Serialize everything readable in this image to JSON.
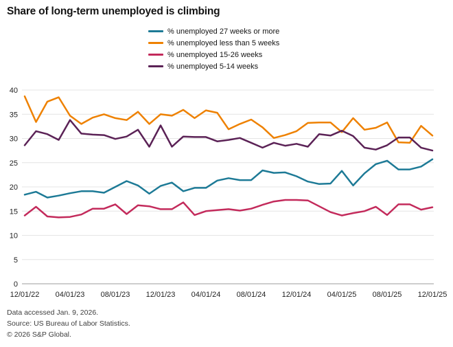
{
  "title": "Share of long-term unemployed is climbing",
  "footer": {
    "line1": "Data accessed Jan. 9, 2026.",
    "line2": "Source: US Bureau of Labor Statistics.",
    "line3": "© 2026 S&P Global."
  },
  "chart_data": {
    "type": "line",
    "x_start": "2022-12-01",
    "x_freq": "monthly",
    "n_points": 37,
    "x_tick_labels": [
      "12/01/22",
      "04/01/23",
      "08/01/23",
      "12/01/23",
      "04/01/24",
      "08/01/24",
      "12/01/24",
      "04/01/25",
      "08/01/25",
      "12/01/25"
    ],
    "x_tick_month_index": [
      0,
      4,
      8,
      12,
      16,
      20,
      24,
      28,
      32,
      36
    ],
    "ylim": [
      0,
      40
    ],
    "y_ticks": [
      0,
      5,
      10,
      15,
      20,
      25,
      30,
      35,
      40
    ],
    "grid": "horizontal",
    "legend_position": "top-center",
    "colors": {
      "grid": "#e4e4e4",
      "baseline": "#9b9b9b",
      "tick_text": "#1f1f1f"
    },
    "series": [
      {
        "name": "% unemployed 27 weeks or more",
        "color": "#1d7a96",
        "values": [
          18.4,
          19.0,
          17.8,
          18.2,
          18.7,
          19.1,
          19.1,
          18.8,
          20.0,
          21.2,
          20.3,
          18.6,
          20.2,
          20.9,
          19.1,
          19.8,
          19.8,
          21.3,
          21.8,
          21.4,
          21.4,
          23.4,
          22.9,
          23.0,
          22.2,
          21.1,
          20.6,
          20.7,
          23.3,
          20.3,
          22.8,
          24.7,
          25.4,
          23.6,
          23.6,
          24.2,
          25.7
        ]
      },
      {
        "name": "% unemployed less than 5 weeks",
        "color": "#ee8100",
        "values": [
          38.7,
          33.4,
          37.6,
          38.5,
          34.7,
          33.0,
          34.3,
          35.0,
          34.2,
          33.8,
          35.5,
          33.0,
          35.0,
          34.7,
          35.9,
          34.2,
          35.8,
          35.3,
          31.9,
          33.0,
          33.9,
          32.3,
          30.1,
          30.7,
          31.5,
          33.2,
          33.3,
          33.3,
          31.3,
          34.2,
          31.8,
          32.2,
          33.3,
          29.2,
          29.1,
          32.6,
          30.6
        ]
      },
      {
        "name": "% unemployed 15-26 weeks",
        "color": "#c32a5b",
        "values": [
          14.1,
          15.9,
          13.9,
          13.7,
          13.8,
          14.3,
          15.5,
          15.5,
          16.4,
          14.4,
          16.2,
          16.0,
          15.4,
          15.4,
          16.8,
          14.2,
          15.0,
          15.2,
          15.4,
          15.1,
          15.5,
          16.3,
          17.0,
          17.3,
          17.3,
          17.2,
          16.0,
          14.8,
          14.1,
          14.6,
          15.0,
          15.9,
          14.2,
          16.4,
          16.4,
          15.3,
          15.8
        ]
      },
      {
        "name": "% unemployed 5-14 weeks",
        "color": "#5b2256",
        "values": [
          28.6,
          31.5,
          30.9,
          29.7,
          33.8,
          31.0,
          30.8,
          30.7,
          29.9,
          30.4,
          31.8,
          28.3,
          32.7,
          28.3,
          30.4,
          30.3,
          30.3,
          29.4,
          29.7,
          30.1,
          29.1,
          28.1,
          29.1,
          28.5,
          28.9,
          28.3,
          30.9,
          30.6,
          31.6,
          30.5,
          28.1,
          27.7,
          28.6,
          30.2,
          30.2,
          28.1,
          27.5
        ]
      }
    ]
  }
}
